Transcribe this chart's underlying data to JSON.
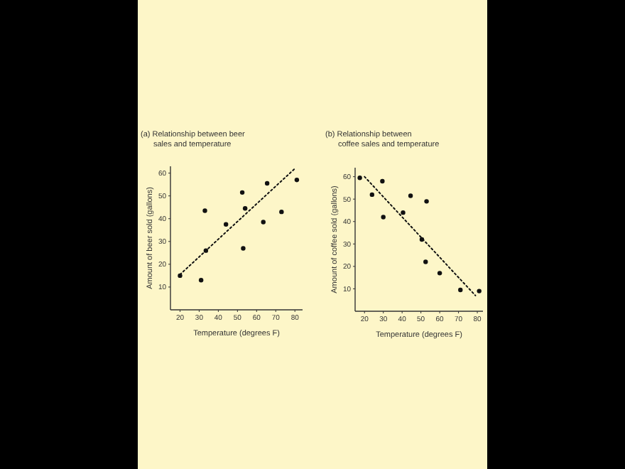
{
  "chart_data": [
    {
      "type": "scatter",
      "title": "(a) Relationship between beer sales and temperature",
      "xlabel": "Temperature (degrees F)",
      "ylabel": "Amount of beer sold (gallons)",
      "xlim": [
        15,
        84
      ],
      "ylim": [
        0,
        63
      ],
      "xticks": [
        20,
        30,
        40,
        50,
        60,
        70,
        80
      ],
      "yticks": [
        10,
        20,
        30,
        40,
        50,
        60
      ],
      "marker": "circle",
      "grid": false,
      "series": [
        {
          "color": "#111111",
          "x": [
            20,
            31,
            33,
            33.5,
            44,
            52.5,
            53,
            54,
            63.5,
            65.5,
            73,
            81
          ],
          "values": [
            15,
            13,
            43.5,
            26,
            37.5,
            51.5,
            27,
            44.5,
            38.5,
            55.5,
            43,
            57
          ]
        },
        {
          "type": "line",
          "color": "#111111",
          "line_style": "dotted",
          "marker": "none",
          "x": [
            20,
            80
          ],
          "values": [
            15.5,
            62
          ]
        }
      ]
    },
    {
      "type": "scatter",
      "title": "(b) Relationship between coffee sales and temperature",
      "xlabel": "Temperature (degrees F)",
      "ylabel": "Amount of coffee sold (gallons)",
      "xlim": [
        15,
        83
      ],
      "ylim": [
        0,
        64
      ],
      "xticks": [
        20,
        30,
        40,
        50,
        60,
        70,
        80
      ],
      "yticks": [
        10,
        20,
        30,
        40,
        50,
        60
      ],
      "marker": "circle",
      "grid": false,
      "series": [
        {
          "color": "#111111",
          "x": [
            17.5,
            24,
            29.5,
            30,
            40.5,
            44.5,
            50.5,
            53,
            52.5,
            60,
            71,
            81
          ],
          "values": [
            59.5,
            52,
            58,
            42,
            44,
            51.5,
            32,
            49,
            22,
            17,
            9.5,
            9
          ]
        },
        {
          "type": "line",
          "color": "#111111",
          "line_style": "dotted",
          "marker": "none",
          "x": [
            20,
            79
          ],
          "values": [
            60,
            7
          ]
        }
      ]
    }
  ]
}
